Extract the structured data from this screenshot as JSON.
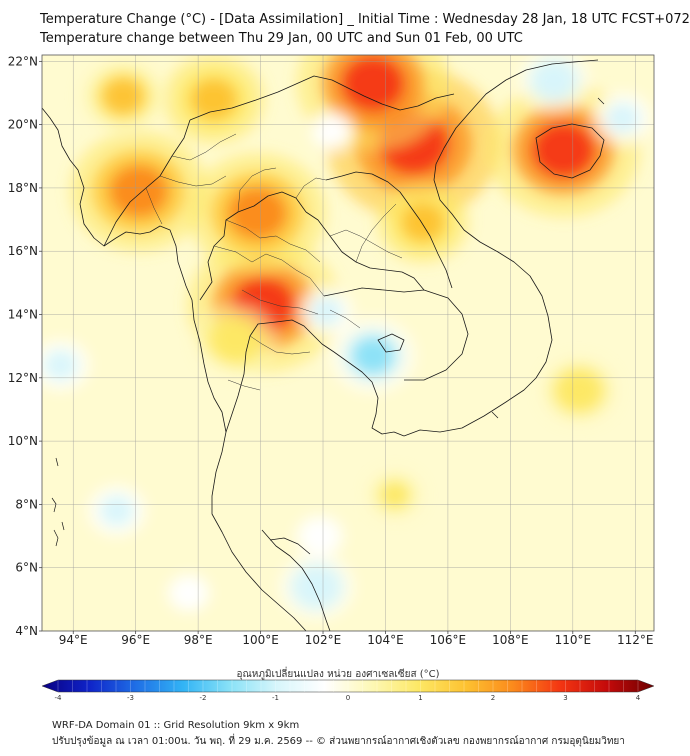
{
  "header": {
    "title_line1": "Temperature Change (°C) - [Data Assimilation] _ Initial Time : Wednesday 28 Jan, 18 UTC FCST+072",
    "title_line2": "Temperature change between Thu 29 Jan, 00 UTC and Sun 01 Feb, 00 UTC"
  },
  "map": {
    "lon_range": [
      93.0,
      112.6
    ],
    "lat_range": [
      4.0,
      22.2
    ],
    "lat_ticks": [
      "22°N",
      "20°N",
      "18°N",
      "16°N",
      "14°N",
      "12°N",
      "10°N",
      "8°N",
      "6°N",
      "4°N"
    ],
    "lon_ticks": [
      "94°E",
      "96°E",
      "98°E",
      "100°E",
      "102°E",
      "104°E",
      "106°E",
      "108°E",
      "110°E",
      "112°E"
    ],
    "grid": true,
    "background_color": "#fffbd0",
    "hotspots": [
      {
        "lon": 104.9,
        "lat": 19.4,
        "level": 3.0
      },
      {
        "lon": 103.6,
        "lat": 21.3,
        "level": 2.6
      },
      {
        "lon": 100.1,
        "lat": 14.3,
        "level": 2.6
      },
      {
        "lon": 96.1,
        "lat": 17.9,
        "level": 2.3
      },
      {
        "lon": 99.9,
        "lat": 17.2,
        "level": 2.3
      },
      {
        "lon": 109.7,
        "lat": 19.2,
        "level": 2.6
      },
      {
        "lon": 98.5,
        "lat": 20.8,
        "level": 1.6
      },
      {
        "lon": 95.6,
        "lat": 20.9,
        "level": 1.3
      },
      {
        "lon": 105.2,
        "lat": 16.9,
        "level": 1.4
      },
      {
        "lon": 99.2,
        "lat": 13.2,
        "level": 1.2
      },
      {
        "lon": 110.2,
        "lat": 11.6,
        "level": 1.1
      },
      {
        "lon": 104.3,
        "lat": 8.3,
        "level": 0.7
      },
      {
        "lon": 109.4,
        "lat": 21.4,
        "level": -1.0
      },
      {
        "lon": 111.6,
        "lat": 20.2,
        "level": -0.8
      },
      {
        "lon": 103.6,
        "lat": 12.7,
        "level": -1.3
      },
      {
        "lon": 102.1,
        "lat": 14.1,
        "level": -0.7
      },
      {
        "lon": 93.6,
        "lat": 12.4,
        "level": -0.8
      },
      {
        "lon": 95.4,
        "lat": 7.8,
        "level": -0.8
      },
      {
        "lon": 101.8,
        "lat": 5.4,
        "level": -1.1
      },
      {
        "lon": 101.9,
        "lat": 7.0,
        "level": -0.6
      },
      {
        "lon": 102.3,
        "lat": 19.8,
        "level": -0.5
      },
      {
        "lon": 97.7,
        "lat": 5.2,
        "level": -0.5
      }
    ]
  },
  "colorbar": {
    "title": "อุณหภูมิเปลี่ยนแปลง หน่วย องศาเซลเซียส (°C)",
    "min": -4,
    "max": 4,
    "tick_labels": [
      "-4",
      "-3",
      "-2",
      "-1",
      "0",
      "1",
      "2",
      "3",
      "4"
    ],
    "colors": [
      "#0a0082",
      "#0f23c8",
      "#1f6fe6",
      "#32b4f5",
      "#8ae2f7",
      "#d8f6fb",
      "#ffffff",
      "#fdf8b6",
      "#fde865",
      "#fdc231",
      "#fb8a1c",
      "#f43612",
      "#c40a0a",
      "#6d0000"
    ]
  },
  "footer": {
    "line1": "WRF-DA Domain 01 :: Grid Resolution 9km x 9km",
    "line2": "ปรับปรุงข้อมูล ณ เวลา 01:00น. วัน พฤ. ที่ 29 ม.ค. 2569 -- © ส่วนพยากรณ์อากาศเชิงตัวเลข กองพยากรณ์อากาศ กรมอุตุนิยมวิทยา"
  }
}
